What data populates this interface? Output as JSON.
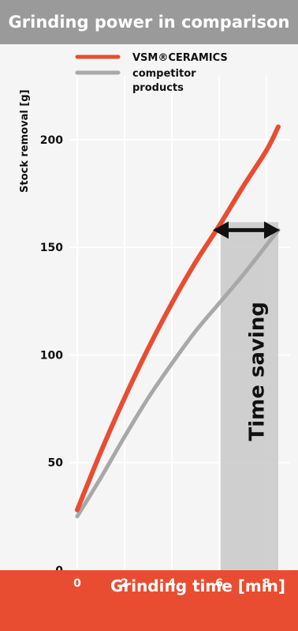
{
  "chart_data": {
    "type": "line",
    "title": "Grinding power in comparison",
    "xlabel": "Grinding time [min]",
    "ylabel": "Stock removal [g]",
    "xlim": [
      0,
      9
    ],
    "ylim": [
      0,
      215
    ],
    "x_ticks": [
      0,
      2,
      4,
      6,
      8
    ],
    "y_ticks": [
      0,
      50,
      100,
      150,
      200
    ],
    "grid": true,
    "legend": "top-left",
    "series": [
      {
        "name": "VSM®CERAMICS",
        "color": "#e84d32",
        "x": [
          0,
          1,
          2,
          3,
          4,
          5,
          6,
          7,
          8,
          8.5
        ],
        "y": [
          28,
          55,
          80,
          103,
          124,
          143,
          160,
          178,
          195,
          206
        ]
      },
      {
        "name": "competitor products",
        "color": "#a8a8a8",
        "x": [
          0,
          1,
          2,
          3,
          4,
          5,
          6,
          7,
          8,
          8.5
        ],
        "y": [
          25,
          43,
          62,
          80,
          96,
          111,
          124,
          137,
          151,
          158
        ]
      }
    ],
    "annotation": {
      "label": "Time saving",
      "y": 158,
      "x_from": 5.8,
      "x_to": 8.5
    },
    "colors": {
      "title_bar": "#9a9a9a",
      "bottom_bar": "#e84d32",
      "grid": "#ffffff",
      "plot_bg": "#f5f5f5",
      "shade": "#c8c8c8"
    }
  }
}
